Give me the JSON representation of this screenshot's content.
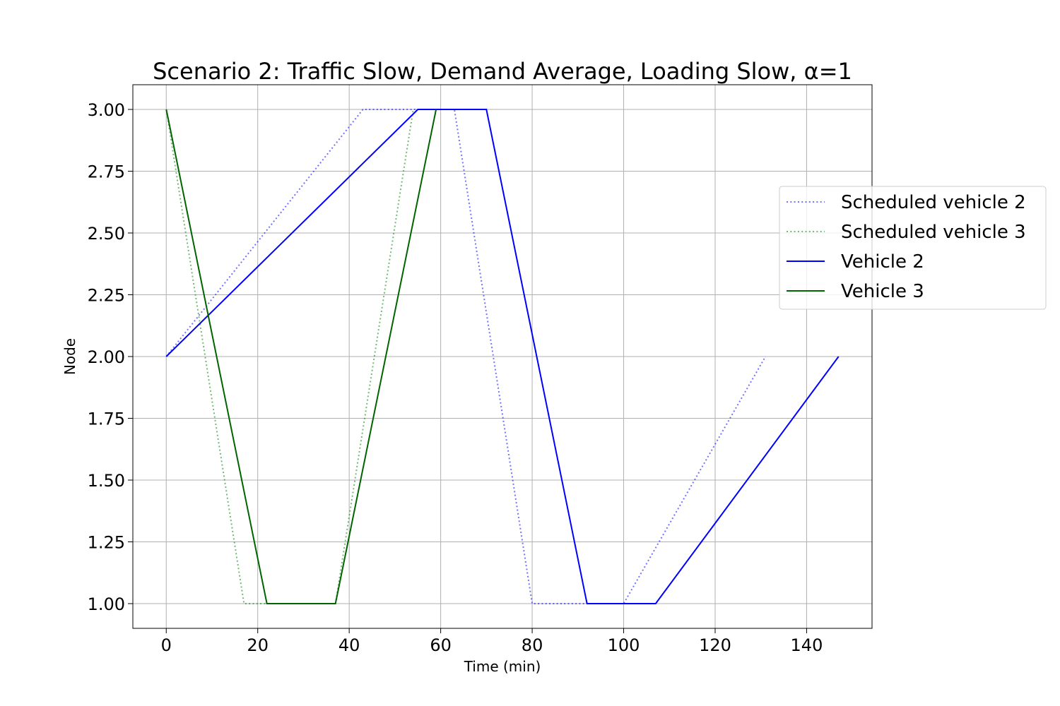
{
  "chart_data": {
    "type": "line",
    "title": "Scenario 2: Traffic Slow, Demand Average, Loading Slow, α=1",
    "xlabel": "Time (min)",
    "ylabel": "Node",
    "xlim": [
      -7.3,
      154.3
    ],
    "ylim": [
      0.9,
      3.1
    ],
    "xticks": [
      0,
      20,
      40,
      60,
      80,
      100,
      120,
      140
    ],
    "yticks": [
      1.0,
      1.25,
      1.5,
      1.75,
      2.0,
      2.25,
      2.5,
      2.75,
      3.0
    ],
    "xtick_labels": [
      "0",
      "20",
      "40",
      "60",
      "80",
      "100",
      "120",
      "140"
    ],
    "ytick_labels": [
      "1.00",
      "1.25",
      "1.50",
      "1.75",
      "2.00",
      "2.25",
      "2.50",
      "2.75",
      "3.00"
    ],
    "grid": true,
    "legend_position": "right",
    "series": [
      {
        "name": "Scheduled vehicle 2",
        "color": "#0000ff",
        "style": "dotted",
        "x": [
          0,
          43,
          63,
          80,
          100,
          131
        ],
        "y": [
          2,
          3,
          3,
          1,
          1,
          2
        ]
      },
      {
        "name": "Scheduled vehicle 3",
        "color": "#008000",
        "style": "dotted",
        "x": [
          0,
          17,
          37,
          54
        ],
        "y": [
          3,
          1,
          1,
          3
        ]
      },
      {
        "name": "Vehicle 2",
        "color": "#0000ff",
        "style": "solid",
        "x": [
          0,
          55,
          70,
          92,
          107,
          147
        ],
        "y": [
          2,
          3,
          3,
          1,
          1,
          2
        ]
      },
      {
        "name": "Vehicle 3",
        "color": "#006400",
        "style": "solid",
        "x": [
          0,
          22,
          37,
          59
        ],
        "y": [
          3,
          1,
          1,
          3
        ]
      }
    ]
  }
}
